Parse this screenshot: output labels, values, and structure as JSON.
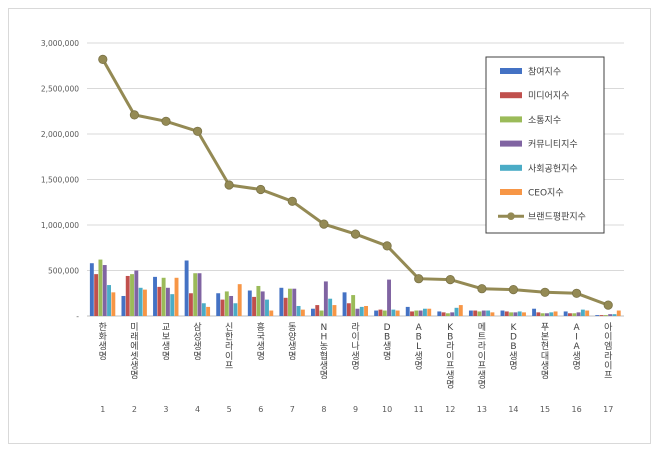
{
  "chart_data": {
    "type": "bar",
    "title": "",
    "xlabel": "",
    "ylabel": "",
    "ylim": [
      0,
      3000000
    ],
    "yticks": [
      "-",
      "500,000",
      "1,000,000",
      "1,500,000",
      "2,000,000",
      "2,500,000",
      "3,000,000"
    ],
    "grid": true,
    "legend_position": "top-right",
    "index_labels": [
      "1",
      "2",
      "3",
      "4",
      "5",
      "6",
      "7",
      "8",
      "9",
      "10",
      "11",
      "12",
      "13",
      "14",
      "15",
      "16",
      "17"
    ],
    "categories": [
      "한화생명",
      "미래에셋생명",
      "교보생명",
      "삼성생명",
      "신한라이프",
      "흥국생명",
      "동양생명",
      "NH농협생명",
      "라이나생명",
      "DB생명",
      "ABL생명",
      "KB라이프생명",
      "메트라이프생명",
      "KDB생명",
      "푸본현대생명",
      "AIA생명",
      "아이엠라이프"
    ],
    "series": [
      {
        "name": "참여지수",
        "type": "bar",
        "color": "#4472c4",
        "values": [
          580000,
          220000,
          430000,
          610000,
          250000,
          280000,
          310000,
          80000,
          260000,
          60000,
          100000,
          50000,
          60000,
          60000,
          80000,
          50000,
          10000
        ]
      },
      {
        "name": "미디어지수",
        "type": "bar",
        "color": "#c0504d",
        "values": [
          460000,
          440000,
          320000,
          250000,
          180000,
          210000,
          200000,
          120000,
          140000,
          70000,
          50000,
          40000,
          60000,
          50000,
          40000,
          30000,
          10000
        ]
      },
      {
        "name": "소통지수",
        "type": "bar",
        "color": "#9bbb59",
        "values": [
          620000,
          460000,
          420000,
          470000,
          270000,
          330000,
          300000,
          60000,
          230000,
          60000,
          60000,
          30000,
          50000,
          40000,
          30000,
          30000,
          10000
        ]
      },
      {
        "name": "커뮤니티지수",
        "type": "bar",
        "color": "#8064a2",
        "values": [
          560000,
          500000,
          310000,
          470000,
          220000,
          270000,
          300000,
          380000,
          80000,
          400000,
          60000,
          40000,
          60000,
          40000,
          30000,
          40000,
          20000
        ]
      },
      {
        "name": "사회공헌지수",
        "type": "bar",
        "color": "#4bacc6",
        "values": [
          340000,
          310000,
          240000,
          140000,
          140000,
          180000,
          110000,
          190000,
          100000,
          70000,
          80000,
          90000,
          60000,
          50000,
          40000,
          70000,
          20000
        ]
      },
      {
        "name": "CEO지수",
        "type": "bar",
        "color": "#f79646",
        "values": [
          260000,
          290000,
          420000,
          100000,
          350000,
          60000,
          70000,
          120000,
          110000,
          60000,
          80000,
          120000,
          40000,
          40000,
          50000,
          60000,
          60000
        ]
      },
      {
        "name": "브랜드평판지수",
        "type": "line",
        "color": "#948a54",
        "values": [
          2820000,
          2210000,
          2140000,
          2030000,
          1440000,
          1390000,
          1260000,
          1010000,
          900000,
          770000,
          410000,
          400000,
          300000,
          290000,
          260000,
          250000,
          120000
        ]
      }
    ]
  }
}
